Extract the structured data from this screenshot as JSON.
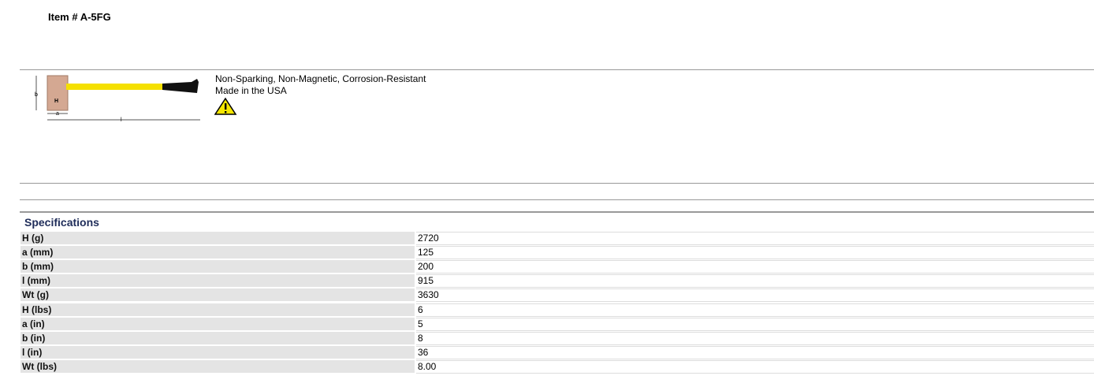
{
  "header": {
    "title": "Item # A-5FG"
  },
  "product": {
    "image_labels": {
      "b": "b",
      "a": "a",
      "l": "l",
      "H": "H"
    },
    "features": [
      "Non-Sparking, Non-Magnetic, Corrosion-Resistant",
      "Made in the USA"
    ]
  },
  "specifications": {
    "title": "Specifications",
    "rows": [
      [
        "H (g)",
        "2720"
      ],
      [
        "a (mm)",
        "125"
      ],
      [
        "b (mm)",
        "200"
      ],
      [
        "l (mm)",
        "915"
      ],
      [
        "Wt (g)",
        "3630"
      ],
      [
        "H (lbs)",
        "6"
      ],
      [
        "a (in)",
        "5"
      ],
      [
        "b (in)",
        "8"
      ],
      [
        "l (in)",
        "36"
      ],
      [
        "Wt (lbs)",
        "8.00"
      ]
    ]
  }
}
